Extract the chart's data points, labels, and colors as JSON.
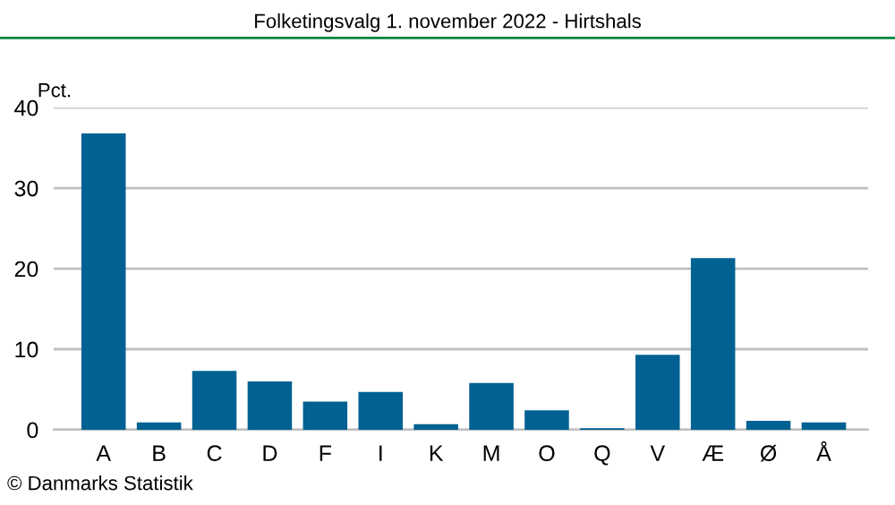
{
  "chart_data": {
    "type": "bar",
    "title": "Folketingsvalg 1. november 2022 - Hirtshals",
    "ylabel": "Pct.",
    "categories": [
      "A",
      "B",
      "C",
      "D",
      "F",
      "I",
      "K",
      "M",
      "O",
      "Q",
      "V",
      "Æ",
      "Ø",
      "Å"
    ],
    "values": [
      36.8,
      0.9,
      7.3,
      6.0,
      3.5,
      4.7,
      0.7,
      5.8,
      2.4,
      0.2,
      9.3,
      21.3,
      1.1,
      0.9
    ],
    "color": "#006192",
    "ylim": [
      0,
      40
    ],
    "yticks": [
      0,
      10,
      20,
      30,
      40
    ],
    "grid": "y",
    "annotations": [
      "© Danmarks Statistik"
    ]
  }
}
